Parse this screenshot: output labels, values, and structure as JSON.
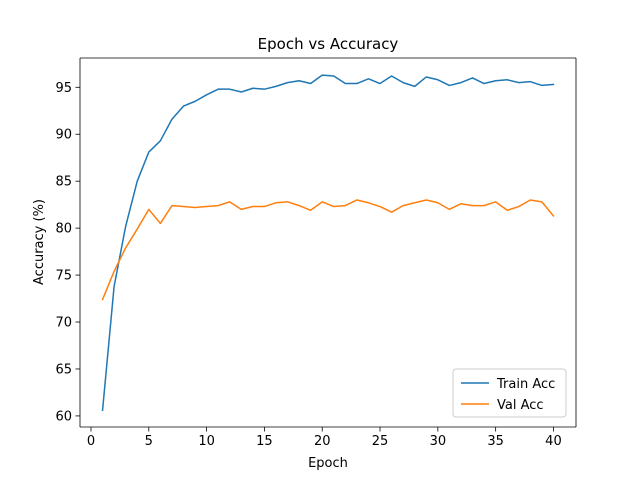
{
  "chart_data": {
    "type": "line",
    "title": "Epoch vs Accuracy",
    "xlabel": "Epoch",
    "ylabel": "Accuracy (%)",
    "xlim": [
      -0.95,
      41.95
    ],
    "ylim": [
      58.82,
      98.12
    ],
    "xticks": [
      0,
      5,
      10,
      15,
      20,
      25,
      30,
      35,
      40
    ],
    "yticks": [
      60,
      65,
      70,
      75,
      80,
      85,
      90,
      95
    ],
    "grid": false,
    "legend": "lower right",
    "x": [
      1,
      2,
      3,
      4,
      5,
      6,
      7,
      8,
      9,
      10,
      11,
      12,
      13,
      14,
      15,
      16,
      17,
      18,
      19,
      20,
      21,
      22,
      23,
      24,
      25,
      26,
      27,
      28,
      29,
      30,
      31,
      32,
      33,
      34,
      35,
      36,
      37,
      38,
      39,
      40
    ],
    "series": [
      {
        "name": "Train Acc",
        "color": "#1f77b4",
        "values": [
          60.6,
          73.8,
          80.2,
          85.0,
          88.1,
          89.3,
          91.6,
          93.0,
          93.5,
          94.2,
          94.8,
          94.8,
          94.5,
          94.9,
          94.8,
          95.1,
          95.5,
          95.7,
          95.4,
          96.3,
          96.2,
          95.4,
          95.4,
          95.9,
          95.4,
          96.2,
          95.5,
          95.1,
          96.1,
          95.8,
          95.2,
          95.5,
          96.0,
          95.4,
          95.7,
          95.8,
          95.5,
          95.6,
          95.2,
          95.3
        ]
      },
      {
        "name": "Val Acc",
        "color": "#ff7f0e",
        "values": [
          72.4,
          75.4,
          77.9,
          79.9,
          82.0,
          80.5,
          82.4,
          82.3,
          82.2,
          82.3,
          82.4,
          82.8,
          82.0,
          82.3,
          82.3,
          82.7,
          82.8,
          82.4,
          81.9,
          82.8,
          82.3,
          82.4,
          83.0,
          82.7,
          82.3,
          81.7,
          82.4,
          82.7,
          83.0,
          82.7,
          82.0,
          82.6,
          82.4,
          82.4,
          82.8,
          81.9,
          82.3,
          83.0,
          82.8,
          81.3
        ]
      }
    ]
  }
}
